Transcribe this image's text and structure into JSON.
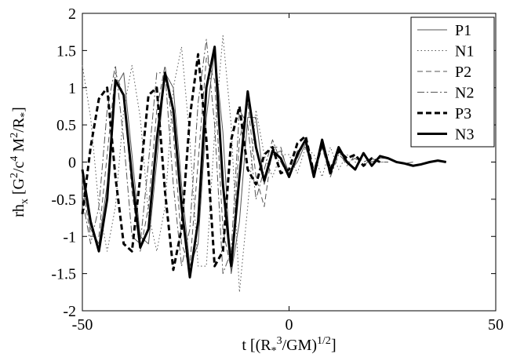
{
  "chart_data": {
    "type": "line",
    "xlabel": [
      {
        "text": "t [(R"
      },
      {
        "text": "*",
        "shift": "sub"
      },
      {
        "text": "3",
        "shift": "sup"
      },
      {
        "text": "/GM)"
      },
      {
        "text": "1/2",
        "shift": "sup"
      },
      {
        "text": "]"
      }
    ],
    "ylabel": [
      {
        "text": "rh"
      },
      {
        "text": "x",
        "shift": "sub"
      },
      {
        "text": " [G"
      },
      {
        "text": "2",
        "shift": "sup"
      },
      {
        "text": "/c"
      },
      {
        "text": "4",
        "shift": "sup"
      },
      {
        "text": " M"
      },
      {
        "text": "2",
        "shift": "sup"
      },
      {
        "text": "/R"
      },
      {
        "text": "*",
        "shift": "sub"
      },
      {
        "text": "]"
      }
    ],
    "x": [
      -50,
      -48,
      -46,
      -44,
      -42,
      -40,
      -38,
      -36,
      -34,
      -32,
      -30,
      -28,
      -26,
      -24,
      -22,
      -20,
      -18,
      -16,
      -14,
      -12,
      -10,
      -8,
      -6,
      -4,
      -2,
      0,
      2,
      4,
      6,
      8,
      10,
      12,
      14,
      16,
      18,
      20,
      22,
      24,
      26,
      28,
      30,
      32,
      34,
      36,
      38
    ],
    "series": [
      {
        "name": "P1",
        "color": "#555555",
        "line_style": "solid",
        "line_width": 1,
        "values": [
          -0.2,
          -0.9,
          -1.1,
          -0.3,
          1.0,
          1.2,
          0.1,
          -1.0,
          -1.1,
          0.0,
          1.2,
          1.0,
          -0.3,
          -1.4,
          -1.1,
          0.6,
          1.5,
          0.4,
          -1.5,
          -0.8,
          0.6,
          0.6,
          -0.3,
          0.1,
          0.15,
          -0.15,
          0.0,
          0.25,
          -0.1,
          0.2,
          -0.15,
          0.15,
          0.0,
          -0.1,
          0.1,
          0.0,
          0.05,
          0.05,
          0.0,
          -0.02,
          0.0,
          null,
          null,
          null,
          null
        ]
      },
      {
        "name": "N1",
        "color": "#555555",
        "line_style": "dotted",
        "line_width": 1,
        "values": [
          1.3,
          0.6,
          -0.6,
          -1.2,
          -0.6,
          0.7,
          1.3,
          0.6,
          -0.7,
          -1.2,
          -0.6,
          1.0,
          1.55,
          0.3,
          -1.4,
          -1.4,
          0.4,
          1.7,
          0.5,
          -1.75,
          -0.6,
          0.7,
          0.1,
          -0.2,
          0.1,
          0.1,
          -0.15,
          0.2,
          0.1,
          -0.2,
          0.2,
          -0.1,
          0.1,
          0.0,
          -0.05,
          0.05,
          0.0,
          0.0,
          null,
          null,
          null,
          null,
          null,
          null,
          null
        ]
      },
      {
        "name": "P2",
        "color": "#555555",
        "line_style": "dashed",
        "line_width": 1,
        "values": [
          -0.3,
          -1.0,
          -1.0,
          0.1,
          1.2,
          0.9,
          -0.4,
          -1.2,
          -0.6,
          0.7,
          1.3,
          0.4,
          -1.1,
          -1.4,
          0.0,
          1.4,
          1.1,
          -0.9,
          -1.45,
          0.3,
          0.8,
          -0.2,
          -0.6,
          0.2,
          0.2,
          -0.2,
          0.05,
          0.3,
          -0.2,
          0.2,
          -0.2,
          0.15,
          -0.05,
          0.1,
          0.0,
          0.05,
          0.0,
          null,
          null,
          null,
          null,
          null,
          null,
          null,
          null
        ]
      },
      {
        "name": "N2",
        "color": "#555555",
        "line_style": "dashdot",
        "line_width": 1,
        "values": [
          -0.5,
          -1.1,
          -0.6,
          0.7,
          1.3,
          0.3,
          -1.0,
          -1.1,
          0.0,
          1.2,
          1.2,
          -0.3,
          -1.4,
          -0.9,
          0.8,
          1.65,
          0.5,
          -1.5,
          -1.2,
          0.7,
          0.5,
          -0.5,
          -0.1,
          0.3,
          0.0,
          -0.2,
          0.15,
          0.2,
          -0.15,
          0.25,
          -0.2,
          0.1,
          0.0,
          0.05,
          -0.05,
          0.05,
          0.0,
          0.0,
          null,
          null,
          null,
          null,
          null,
          null,
          null
        ]
      },
      {
        "name": "P3",
        "color": "#000000",
        "line_style": "dashed",
        "line_width": 3,
        "values": [
          -0.7,
          0.2,
          0.85,
          1.0,
          -0.2,
          -1.1,
          -1.2,
          -0.2,
          0.9,
          1.0,
          -0.4,
          -1.45,
          -0.9,
          0.6,
          1.45,
          0.3,
          -1.4,
          -1.2,
          0.3,
          0.75,
          -0.1,
          -0.3,
          0.1,
          0.2,
          -0.15,
          -0.1,
          0.25,
          0.35,
          -0.15,
          0.25,
          -0.1,
          0.15,
          0.05,
          0.1,
          -0.05,
          0.05,
          0.0,
          null,
          null,
          null,
          null,
          null,
          null,
          null,
          null
        ]
      },
      {
        "name": "N3",
        "color": "#000000",
        "line_style": "solid",
        "line_width": 3,
        "values": [
          -0.1,
          -0.8,
          -1.2,
          -0.5,
          1.1,
          0.9,
          -0.2,
          -1.15,
          -0.9,
          0.3,
          1.2,
          0.7,
          -0.6,
          -1.55,
          -0.8,
          1.0,
          1.55,
          -0.3,
          -1.4,
          -0.2,
          0.95,
          0.2,
          -0.25,
          0.15,
          0.05,
          -0.2,
          0.1,
          0.3,
          -0.2,
          0.3,
          -0.15,
          0.2,
          0.0,
          -0.1,
          0.12,
          -0.05,
          0.08,
          0.05,
          0,
          -0.02,
          -0.05,
          -0.03,
          0.0,
          0.02,
          0.0
        ]
      }
    ],
    "xlim": [
      -50,
      50
    ],
    "xticks": [
      -50,
      0,
      50
    ],
    "ylim": [
      -2,
      2
    ],
    "yticks": [
      -2,
      -1.5,
      -1,
      -0.5,
      0,
      0.5,
      1,
      1.5,
      2
    ],
    "grid": false,
    "legend": "upper right"
  }
}
